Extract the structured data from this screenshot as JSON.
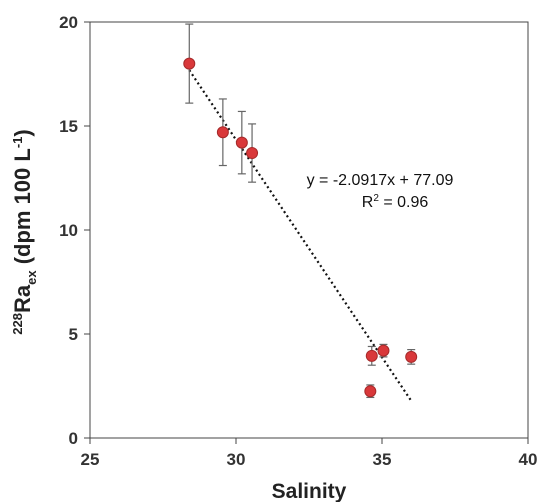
{
  "chart_data": {
    "type": "scatter",
    "xlabel": "Salinity",
    "ylabel": {
      "iso_sup": "228",
      "symbol": "Ra",
      "sub": "ex",
      "unit_open": " (dpm 100 L",
      "unit_sup": "-1",
      "unit_close": ")"
    },
    "xlim": [
      25,
      40
    ],
    "ylim": [
      0,
      20
    ],
    "xticks": [
      "25",
      "30",
      "35",
      "40"
    ],
    "yticks": [
      "0",
      "5",
      "10",
      "15",
      "20"
    ],
    "grid": false,
    "points": [
      {
        "x": 28.4,
        "y": 18.0,
        "err": 1.9
      },
      {
        "x": 29.55,
        "y": 14.7,
        "err": 1.6
      },
      {
        "x": 30.2,
        "y": 14.2,
        "err": 1.5
      },
      {
        "x": 30.55,
        "y": 13.7,
        "err": 1.4
      },
      {
        "x": 34.65,
        "y": 3.95,
        "err": 0.45
      },
      {
        "x": 35.05,
        "y": 4.2,
        "err": 0.3
      },
      {
        "x": 36.0,
        "y": 3.9,
        "err": 0.35
      },
      {
        "x": 34.6,
        "y": 2.25,
        "err": 0.3
      }
    ],
    "trendline": {
      "slope": -2.0917,
      "intercept": 77.09,
      "x_range": [
        28.4,
        36.0
      ],
      "style": "dotted",
      "equation": "y = -2.0917x + 77.09",
      "r2_prefix": "R",
      "r2_sup": "2",
      "r2_value": " = 0.96"
    },
    "marker_color": "#d9383a",
    "marker_edge": "#a52a2a",
    "errorbar_color": "#666666",
    "axis_color": "#555555"
  }
}
